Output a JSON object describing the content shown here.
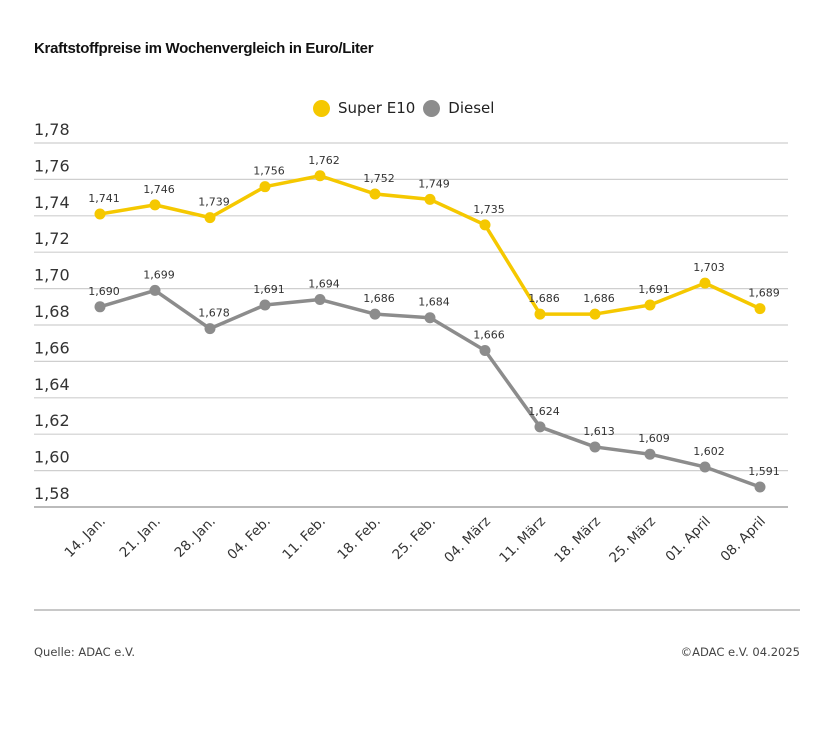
{
  "chart_data": {
    "type": "line",
    "title": "Kraftstoffpreise im Wochenvergleich in Euro/Liter",
    "categories": [
      "14. Jan.",
      "21. Jan.",
      "28. Jan.",
      "04. Feb.",
      "11. Feb.",
      "18. Feb.",
      "25. Feb.",
      "04. März",
      "11. März",
      "18. März",
      "25. März",
      "01. April",
      "08. April"
    ],
    "series": [
      {
        "name": "Super E10",
        "color": "#f5c800",
        "values": [
          1.741,
          1.746,
          1.739,
          1.756,
          1.762,
          1.752,
          1.749,
          1.735,
          1.686,
          1.686,
          1.691,
          1.703,
          1.689
        ],
        "labels": [
          "1,741",
          "1,746",
          "1,739",
          "1,756",
          "1,762",
          "1,752",
          "1,749",
          "1,735",
          "1,686",
          "1,686",
          "1,691",
          "1,703",
          "1,689"
        ]
      },
      {
        "name": "Diesel",
        "color": "#8c8c8c",
        "values": [
          1.69,
          1.699,
          1.678,
          1.691,
          1.694,
          1.686,
          1.684,
          1.666,
          1.624,
          1.613,
          1.609,
          1.602,
          1.591
        ],
        "labels": [
          "1,690",
          "1,699",
          "1,678",
          "1,691",
          "1,694",
          "1,686",
          "1,684",
          "1,666",
          "1,624",
          "1,613",
          "1,609",
          "1,602",
          "1,591"
        ]
      }
    ],
    "yticks": [
      "1,78",
      "1,76",
      "1,74",
      "1,72",
      "1,70",
      "1,68",
      "1,66",
      "1,64",
      "1,62",
      "1,60",
      "1,58"
    ],
    "ylim": [
      1.58,
      1.78
    ],
    "grid": true,
    "legend": "top-center"
  },
  "footer": {
    "source": "Quelle: ADAC e.V.",
    "copyright": "©ADAC e.V. 04.2025"
  }
}
